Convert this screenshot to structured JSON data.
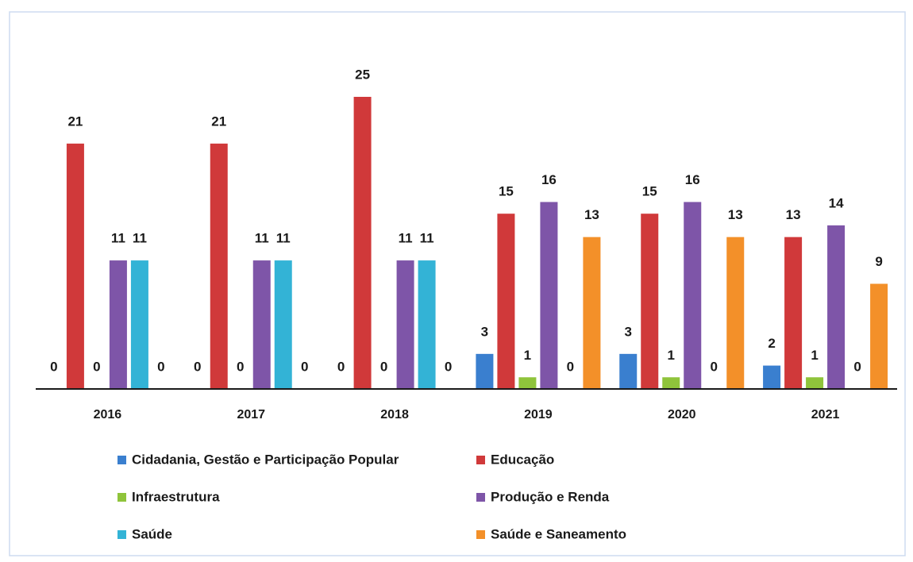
{
  "chart_data": {
    "type": "bar",
    "categories": [
      "2016",
      "2017",
      "2018",
      "2019",
      "2020",
      "2021"
    ],
    "series": [
      {
        "name": "Cidadania, Gestão e Participação Popular",
        "color": "#3a7fcf",
        "values": [
          0,
          0,
          0,
          3,
          3,
          2
        ]
      },
      {
        "name": "Educação",
        "color": "#d0393a",
        "values": [
          21,
          21,
          25,
          15,
          15,
          13
        ]
      },
      {
        "name": "Infraestrutura",
        "color": "#8fc43b",
        "values": [
          0,
          0,
          0,
          1,
          1,
          1
        ]
      },
      {
        "name": "Produção e Renda",
        "color": "#7e55a8",
        "values": [
          11,
          11,
          11,
          16,
          16,
          14
        ]
      },
      {
        "name": "Saúde",
        "color": "#33b3d6",
        "values": [
          11,
          11,
          11,
          0,
          0,
          0
        ]
      },
      {
        "name": "Saúde e Saneamento",
        "color": "#f39029",
        "values": [
          0,
          0,
          0,
          13,
          13,
          9
        ]
      }
    ]
  }
}
